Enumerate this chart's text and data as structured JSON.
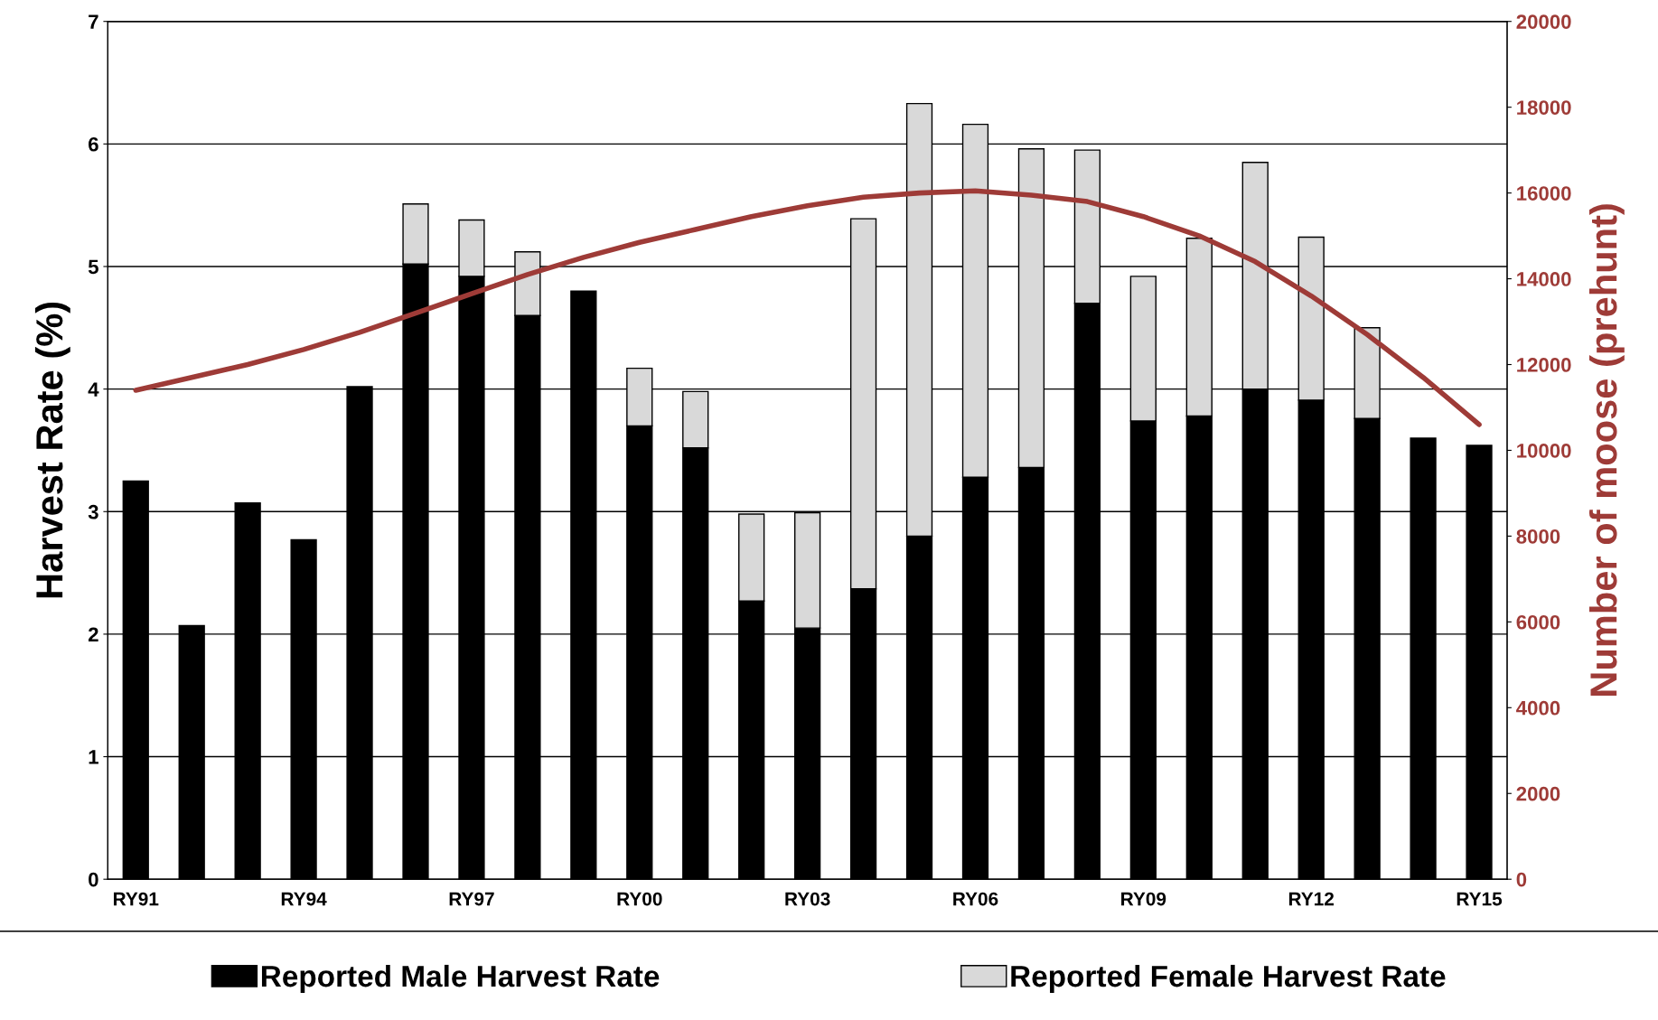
{
  "chart_data": {
    "type": "bar",
    "stacked": true,
    "ylabel": "Harvest Rate (%)",
    "y2label": "Number of moose (prehunt)",
    "categories": [
      "RY91",
      null,
      null,
      "RY94",
      null,
      null,
      "RY97",
      null,
      null,
      "RY00",
      null,
      null,
      "RY03",
      null,
      null,
      "RY06",
      null,
      null,
      "RY09",
      null,
      null,
      "RY12",
      null,
      null,
      "RY15"
    ],
    "series": [
      {
        "name": "Reported Male Harvest Rate",
        "color": "#000000",
        "values": [
          3.25,
          2.07,
          3.07,
          2.77,
          4.02,
          5.02,
          4.92,
          4.6,
          4.8,
          3.7,
          3.52,
          2.27,
          2.05,
          2.37,
          2.8,
          3.28,
          3.36,
          4.7,
          3.74,
          3.78,
          4.0,
          3.91,
          3.76,
          3.6,
          3.54
        ]
      },
      {
        "name": "Reported Female Harvest Rate",
        "color": "#d9d9d9",
        "values": [
          null,
          null,
          null,
          null,
          null,
          0.49,
          0.46,
          0.52,
          null,
          0.47,
          0.46,
          0.71,
          0.94,
          3.02,
          3.53,
          2.88,
          2.6,
          1.25,
          1.18,
          1.45,
          1.85,
          1.33,
          0.74,
          null,
          null
        ]
      },
      {
        "type": "line",
        "axis": "y2",
        "color": "#9e3b37",
        "values": [
          11400,
          11700,
          12000,
          12350,
          12750,
          13200,
          13650,
          14100,
          14500,
          14850,
          15150,
          15450,
          15700,
          15900,
          16000,
          16050,
          15950,
          15800,
          15450,
          15000,
          14400,
          13600,
          12700,
          11700,
          10600
        ]
      }
    ],
    "ylim": [
      0,
      7
    ],
    "yticks": [
      0,
      1,
      2,
      3,
      4,
      5,
      6,
      7
    ],
    "y2lim": [
      0,
      20000
    ],
    "y2ticks": [
      0,
      2000,
      4000,
      6000,
      8000,
      10000,
      12000,
      14000,
      16000,
      18000,
      20000
    ],
    "grid": "y",
    "legend": "bottom"
  }
}
